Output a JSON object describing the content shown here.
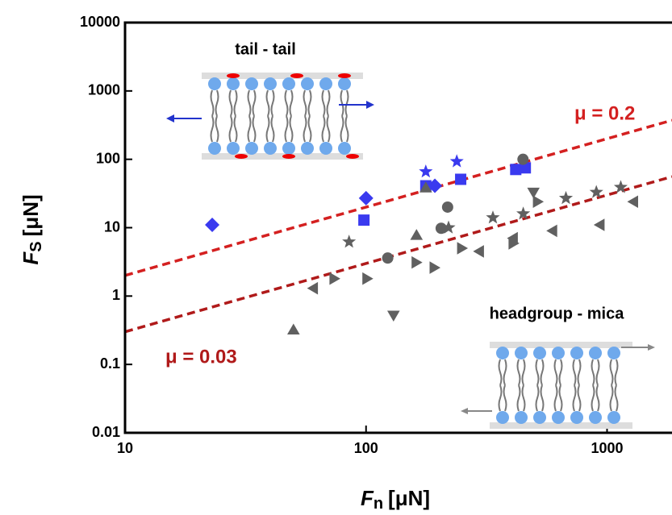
{
  "chart_data": {
    "type": "scatter",
    "log_x": true,
    "log_y": true,
    "xlim": [
      10,
      1860
    ],
    "ylim": [
      0.01,
      10000
    ],
    "xticks": [
      10,
      100,
      1000
    ],
    "yticks": [
      0.01,
      0.1,
      1,
      10,
      100,
      1000,
      10000
    ],
    "xlabel": {
      "symbol": "F",
      "subscript": "n",
      "unit": "[μN]"
    },
    "ylabel": {
      "symbol": "F",
      "subscript": "S",
      "unit": "[μN]"
    },
    "series": [
      {
        "marker": "diamond",
        "color": "#3a3aef",
        "x": [
          23,
          100,
          193
        ],
        "values": [
          11,
          27,
          41
        ]
      },
      {
        "marker": "square",
        "color": "#3a3aef",
        "x": [
          98,
          177,
          247,
          418,
          458
        ],
        "values": [
          12.9,
          41,
          51,
          71,
          75
        ]
      },
      {
        "marker": "star",
        "color": "#3a3aef",
        "x": [
          177,
          238
        ],
        "values": [
          66,
          93
        ]
      },
      {
        "marker": "circle",
        "color": "#606060",
        "x": [
          123,
          205,
          218,
          448
        ],
        "values": [
          3.6,
          9.8,
          20,
          100
        ]
      },
      {
        "marker": "star",
        "color": "#606060",
        "x": [
          85,
          220,
          336,
          449,
          675,
          903,
          1140
        ],
        "values": [
          6.2,
          10,
          14,
          16,
          27,
          33,
          39
        ]
      },
      {
        "marker": "triangle-up",
        "color": "#606060",
        "x": [
          50,
          162,
          177
        ],
        "values": [
          0.31,
          7.5,
          37
        ]
      },
      {
        "marker": "triangle-down",
        "color": "#606060",
        "x": [
          130,
          495
        ],
        "values": [
          0.54,
          34
        ]
      },
      {
        "marker": "triangle-right",
        "color": "#606060",
        "x": [
          73,
          100,
          160,
          190,
          247,
          404,
          510
        ],
        "values": [
          1.8,
          1.8,
          3.1,
          2.6,
          5,
          5.9,
          24
        ]
      },
      {
        "marker": "triangle-left",
        "color": "#606060",
        "x": [
          61,
          298,
          412,
          600,
          943,
          1300
        ],
        "values": [
          1.3,
          4.5,
          7,
          9,
          11,
          24
        ]
      }
    ],
    "lines": [
      {
        "label": "μ = 0.2",
        "color": "#d42020",
        "x": [
          10,
          1860
        ],
        "values": [
          2,
          372
        ]
      },
      {
        "label": "μ = 0.03",
        "color": "#b01a1a",
        "x": [
          10,
          1860
        ],
        "values": [
          0.3,
          55.8
        ]
      }
    ],
    "insets": [
      {
        "label": "tail - tail"
      },
      {
        "label": "headgroup - mica"
      }
    ]
  }
}
